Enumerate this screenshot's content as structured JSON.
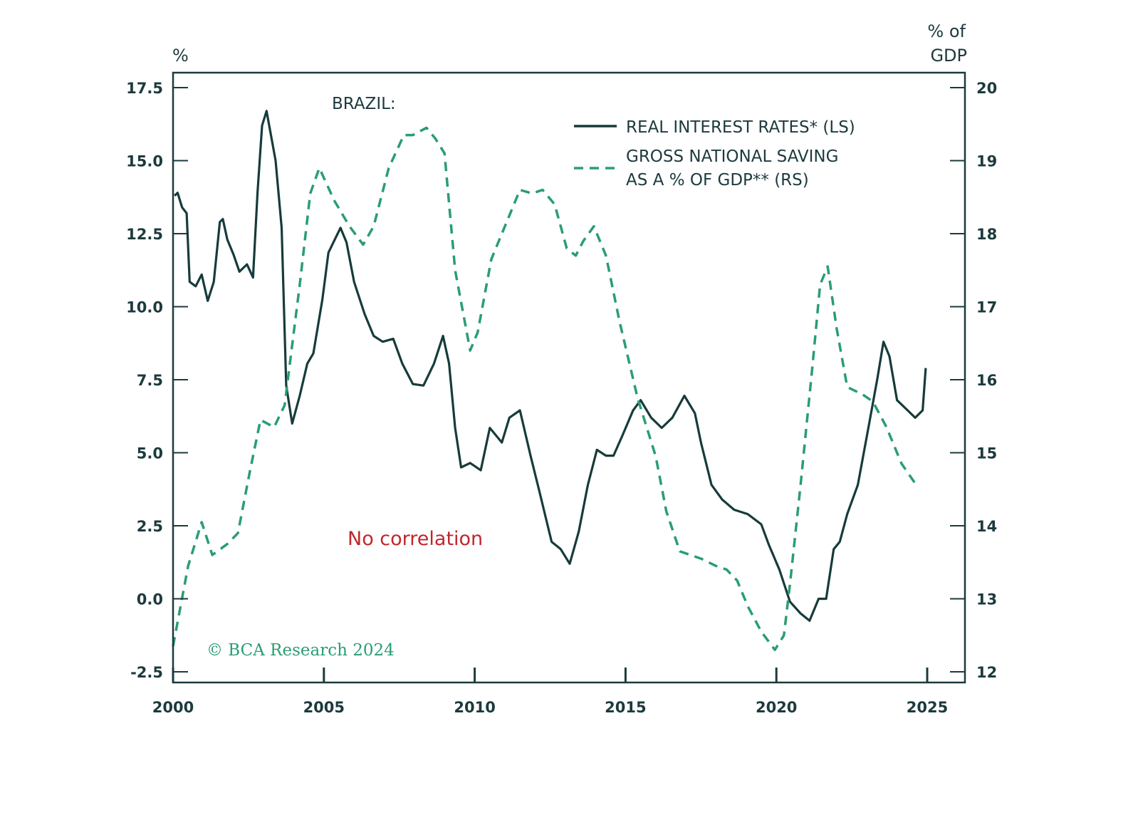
{
  "chart_data": {
    "type": "line",
    "title": "BRAZIL:",
    "xlabel": "",
    "ylabel_left": "%",
    "ylabel_right": [
      "% of",
      "GDP"
    ],
    "xlim": [
      2000,
      2026.2
    ],
    "ylim_left": [
      -2.9,
      18.0
    ],
    "ylim_right": [
      11.85,
      20.2
    ],
    "x_ticks": [
      2000,
      2005,
      2010,
      2015,
      2020,
      2025
    ],
    "x_tick_labels": [
      "2000",
      "2005",
      "2010",
      "2015",
      "2020",
      "2025"
    ],
    "y_left_ticks": [
      17.5,
      15.0,
      12.5,
      10.0,
      7.5,
      5.0,
      2.5,
      0.0,
      -2.5
    ],
    "y_left_tick_labels": [
      "17.5",
      "15.0",
      "12.5",
      "10.0",
      "7.5",
      "5.0",
      "2.5",
      "0.0",
      "-2.5"
    ],
    "y_right_ticks": [
      20,
      19,
      18,
      17,
      16,
      15,
      14,
      13,
      12
    ],
    "y_right_tick_labels": [
      "20",
      "19",
      "18",
      "17",
      "16",
      "15",
      "14",
      "13",
      "12"
    ],
    "grid": false,
    "legend_position": "top-right",
    "series": [
      {
        "name": "REAL INTEREST RATES* (LS)",
        "axis": "left",
        "style": "solid",
        "color": "#173b3b",
        "x": [
          2000.05,
          2000.15,
          2000.3,
          2000.45,
          2000.55,
          2000.75,
          2000.95,
          2001.15,
          2001.35,
          2001.55,
          2001.65,
          2001.8,
          2002.0,
          2002.2,
          2002.45,
          2002.65,
          2002.8,
          2002.95,
          2003.1,
          2003.4,
          2003.6,
          2003.75,
          2003.95,
          2004.2,
          2004.45,
          2004.65,
          2004.95,
          2005.15,
          2005.55,
          2005.75,
          2006.0,
          2006.35,
          2006.65,
          2006.95,
          2007.3,
          2007.6,
          2007.95,
          2008.3,
          2008.65,
          2008.95,
          2009.15,
          2009.35,
          2009.55,
          2009.85,
          2010.2,
          2010.5,
          2010.9,
          2011.15,
          2011.5,
          2011.85,
          2012.15,
          2012.55,
          2012.85,
          2013.15,
          2013.45,
          2013.75,
          2014.05,
          2014.35,
          2014.6,
          2014.9,
          2015.25,
          2015.5,
          2015.85,
          2016.2,
          2016.55,
          2016.95,
          2017.3,
          2017.5,
          2017.85,
          2018.2,
          2018.6,
          2019.05,
          2019.5,
          2019.75,
          2020.1,
          2020.45,
          2020.8,
          2021.1,
          2021.4,
          2021.65,
          2021.9,
          2022.1,
          2022.35,
          2022.7,
          2023.05,
          2023.35,
          2023.55,
          2023.75,
          2024.0,
          2024.35,
          2024.6,
          2024.85,
          2024.95
        ],
        "values": [
          13.8,
          13.9,
          13.4,
          13.2,
          10.85,
          10.7,
          11.1,
          10.2,
          10.85,
          12.9,
          13.0,
          12.3,
          11.8,
          11.2,
          11.45,
          11.0,
          13.9,
          16.2,
          16.7,
          15.0,
          12.7,
          7.3,
          6.0,
          6.95,
          8.05,
          8.4,
          10.25,
          11.85,
          12.7,
          12.2,
          10.85,
          9.75,
          9.0,
          8.8,
          8.9,
          8.05,
          7.35,
          7.3,
          8.05,
          9.0,
          8.05,
          5.85,
          4.5,
          4.65,
          4.4,
          5.85,
          5.35,
          6.2,
          6.45,
          4.9,
          3.65,
          1.95,
          1.7,
          1.2,
          2.3,
          3.9,
          5.1,
          4.9,
          4.9,
          5.6,
          6.45,
          6.8,
          6.2,
          5.85,
          6.2,
          6.95,
          6.35,
          5.35,
          3.9,
          3.4,
          3.05,
          2.9,
          2.55,
          1.85,
          1.0,
          -0.1,
          -0.5,
          -0.75,
          0.0,
          0.0,
          1.7,
          1.95,
          2.9,
          3.9,
          5.85,
          7.55,
          8.8,
          8.3,
          6.8,
          6.45,
          6.2,
          6.45,
          7.9
        ]
      },
      {
        "name": "GROSS NATIONAL SAVING AS A % OF GDP** (RS)",
        "axis": "right",
        "style": "dashed",
        "color": "#2a9d72",
        "x": [
          2000.0,
          2000.5,
          2000.95,
          2001.3,
          2001.8,
          2002.15,
          2002.55,
          2002.9,
          2003.35,
          2003.7,
          2004.2,
          2004.55,
          2004.85,
          2005.35,
          2005.85,
          2006.3,
          2006.65,
          2007.15,
          2007.65,
          2007.95,
          2008.4,
          2008.7,
          2009.0,
          2009.35,
          2009.85,
          2010.1,
          2010.55,
          2011.15,
          2011.5,
          2011.9,
          2012.25,
          2012.65,
          2013.05,
          2013.35,
          2013.6,
          2013.95,
          2014.35,
          2014.8,
          2015.4,
          2016.0,
          2016.35,
          2016.8,
          2017.15,
          2017.5,
          2018.0,
          2018.35,
          2018.7,
          2019.05,
          2019.5,
          2019.95,
          2020.25,
          2020.45,
          2020.8,
          2021.2,
          2021.45,
          2021.7,
          2022.0,
          2022.35,
          2022.85,
          2023.2,
          2023.65,
          2024.15,
          2024.65
        ],
        "values": [
          12.35,
          13.45,
          14.05,
          13.6,
          13.75,
          13.9,
          14.75,
          15.45,
          15.35,
          15.65,
          17.3,
          18.55,
          18.9,
          18.45,
          18.1,
          17.85,
          18.1,
          18.9,
          19.35,
          19.35,
          19.45,
          19.3,
          19.1,
          17.5,
          16.4,
          16.65,
          17.65,
          18.25,
          18.6,
          18.55,
          18.6,
          18.4,
          17.8,
          17.7,
          17.9,
          18.1,
          17.7,
          16.8,
          15.75,
          14.95,
          14.2,
          13.65,
          13.6,
          13.55,
          13.45,
          13.4,
          13.25,
          12.9,
          12.55,
          12.3,
          12.5,
          13.2,
          14.55,
          16.2,
          17.3,
          17.55,
          16.7,
          15.9,
          15.8,
          15.7,
          15.35,
          14.85,
          14.55
        ]
      }
    ],
    "legend": [
      {
        "label_lines": [
          "REAL INTEREST RATES* (LS)"
        ],
        "style": "solid"
      },
      {
        "label_lines": [
          "GROSS NATIONAL SAVING",
          "AS A % OF GDP** (RS)"
        ],
        "style": "dashed"
      }
    ],
    "annotations": [
      {
        "text": "No correlation",
        "color": "#c0272d"
      },
      {
        "text": "© BCA Research 2024",
        "color": "#2a9d72"
      }
    ]
  },
  "labels": {
    "title": "BRAZIL:",
    "left_unit": "%",
    "right_unit_line1": "% of",
    "right_unit_line2": "GDP",
    "legend_1": "REAL INTEREST RATES* (LS)",
    "legend_2_line1": "GROSS NATIONAL SAVING",
    "legend_2_line2": "AS A % OF GDP** (RS)",
    "annotation": "No correlation",
    "credit": "© BCA Research 2024"
  },
  "colors": {
    "frame": "#1c3a3d",
    "interest_line": "#173b3b",
    "saving_line": "#2a9d72",
    "annotation": "#c0272d",
    "credit": "#2a9d72"
  }
}
